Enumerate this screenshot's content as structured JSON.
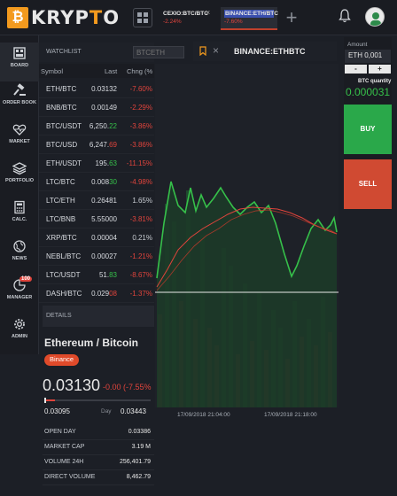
{
  "brand": {
    "badge": "₿",
    "name_a": "KRYP",
    "name_b": "T",
    "name_c": "O"
  },
  "tabs": [
    {
      "name": "CEXIO:BTC/BTC",
      "change": "-2.24%"
    },
    {
      "name": "BINANCE:ETH/BTC",
      "change": "-7.60%"
    }
  ],
  "sidebar": {
    "items": [
      {
        "label": "BOARD",
        "icon": "board-icon"
      },
      {
        "label": "ORDER BOOK",
        "icon": "gavel-icon"
      },
      {
        "label": "MARKET",
        "icon": "heart-pulse-icon"
      },
      {
        "label": "PORTFOLIO",
        "icon": "layers-icon"
      },
      {
        "label": "CALC.",
        "icon": "calculator-icon"
      },
      {
        "label": "NEWS",
        "icon": "globe-icon"
      },
      {
        "label": "MANAGER",
        "icon": "pie-chart-icon",
        "badge": "100"
      },
      {
        "label": "ADMIN",
        "icon": "gear-icon"
      }
    ]
  },
  "watchlist": {
    "title": "WATCHLIST",
    "search_placeholder": "BTCETH",
    "columns": {
      "symbol": "Symbol",
      "last": "Last",
      "change": "Chng (%"
    },
    "rows": [
      {
        "sym": "ETH/BTC",
        "last_a": "0.03132",
        "last_b": "",
        "chg": "-7.60%",
        "dir": "neg"
      },
      {
        "sym": "BNB/BTC",
        "last_a": "0.00149",
        "last_b": "",
        "chg": "-2.29%",
        "dir": "neg"
      },
      {
        "sym": "BTC/USDT",
        "last_a": "6,250.",
        "last_b": "22",
        "chg": "-3.86%",
        "dir": "neg",
        "tail": "g"
      },
      {
        "sym": "BTC/USD",
        "last_a": "6,247.",
        "last_b": "69",
        "chg": "-3.86%",
        "dir": "neg",
        "tail": "r"
      },
      {
        "sym": "ETH/USDT",
        "last_a": "195.",
        "last_b": "63",
        "chg": "-11.15%",
        "dir": "neg",
        "tail": "g"
      },
      {
        "sym": "LTC/BTC",
        "last_a": "0.008",
        "last_b": "30",
        "chg": "-4.98%",
        "dir": "neg",
        "tail": "g"
      },
      {
        "sym": "LTC/ETH",
        "last_a": "0.26481",
        "last_b": "",
        "chg": "1.65%",
        "dir": "pos"
      },
      {
        "sym": "LTC/BNB",
        "last_a": "5.55000",
        "last_b": "",
        "chg": "-3.81%",
        "dir": "neg"
      },
      {
        "sym": "XRP/BTC",
        "last_a": "0.00004",
        "last_b": "",
        "chg": "0.21%",
        "dir": "pos"
      },
      {
        "sym": "NEBL/BTC",
        "last_a": "0.00027",
        "last_b": "",
        "chg": "-1.21%",
        "dir": "neg"
      },
      {
        "sym": "LTC/USDT",
        "last_a": "51.",
        "last_b": "83",
        "chg": "-8.67%",
        "dir": "neg",
        "tail": "g"
      },
      {
        "sym": "DASH/BTC",
        "last_a": "0.029",
        "last_b": "08",
        "chg": "-1.37%",
        "dir": "neg",
        "tail": "r"
      }
    ]
  },
  "details": {
    "header": "DETAILS",
    "pair": "Ethereum / Bitcoin",
    "exchange": "Binance",
    "price": "0.03130",
    "change": "-0.00 (-7.55%",
    "day_low": "0.03095",
    "day_label": "Day",
    "day_high": "0.03443",
    "day_progress": 0.1,
    "stats": [
      {
        "k": "OPEN DAY",
        "v": "0.03386"
      },
      {
        "k": "MARKET CAP",
        "v": "3.19 M"
      },
      {
        "k": "VOLUME 24H",
        "v": "256,401.79"
      },
      {
        "k": "DIRECT VOLUME",
        "v": "8,462.79"
      }
    ]
  },
  "chart": {
    "symbol": "BINANCE:ETHBTC",
    "x_labels": [
      "17/09/2018 21:04:00",
      "17/09/2018 21:18:00"
    ]
  },
  "trade": {
    "amount_label": "Amount",
    "amount_value": "ETH 0,001",
    "minus": "-",
    "plus": "+",
    "btc_qty_label": "BTC quantity",
    "btc_qty_value": "0.000031",
    "buy": "BUY",
    "sell": "SELL"
  },
  "colors": {
    "brand": "#f39a1e",
    "up": "#36c04a",
    "down": "#e0443c",
    "buy": "#2aa84a",
    "sell": "#d04a32"
  }
}
